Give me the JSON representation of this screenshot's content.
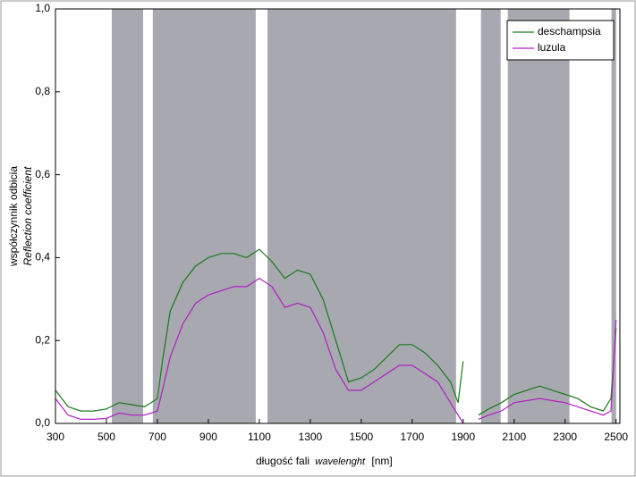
{
  "chart_data": {
    "type": "line",
    "ylabel": "współczynnik odbicia",
    "ylabel_sub": "Reflection coefficient",
    "xlabel": "długość fali",
    "xlabel_italic": "wavelenght",
    "xlabel_unit": "[nm]",
    "xlim": [
      300,
      2515
    ],
    "ylim": [
      0,
      1
    ],
    "xticks": [
      300,
      500,
      700,
      900,
      1100,
      1300,
      1500,
      1700,
      1900,
      2100,
      2300,
      2500
    ],
    "yticks": [
      {
        "value": 0,
        "label": "0,0"
      },
      {
        "value": 0.2,
        "label": "0,2"
      },
      {
        "value": 0.4,
        "label": "0,4"
      },
      {
        "value": 0.6,
        "label": "0,6"
      },
      {
        "value": 0.8,
        "label": "0,8"
      },
      {
        "value": 1,
        "label": "1,0"
      }
    ],
    "shaded_spans": [
      [
        521,
        644
      ],
      [
        682,
        1086
      ],
      [
        1132,
        1872
      ],
      [
        1970,
        2047
      ],
      [
        2075,
        2317
      ],
      [
        2482,
        2500
      ]
    ],
    "shade_color": "#a7a8b0",
    "legend": "upper right",
    "x": [
      300,
      350,
      400,
      450,
      500,
      550,
      600,
      650,
      700,
      720,
      750,
      800,
      850,
      900,
      950,
      1000,
      1050,
      1100,
      1150,
      1200,
      1250,
      1300,
      1350,
      1400,
      1450,
      1500,
      1550,
      1600,
      1650,
      1700,
      1750,
      1800,
      1850,
      1880,
      1900,
      1950,
      1960,
      2000,
      2050,
      2100,
      2150,
      2200,
      2250,
      2300,
      2350,
      2400,
      2450,
      2480,
      2500
    ],
    "series": [
      {
        "name": "deschampsia",
        "color": "#1a7a1a",
        "values": [
          0.08,
          0.04,
          0.03,
          0.03,
          0.035,
          0.05,
          0.045,
          0.04,
          0.06,
          0.15,
          0.27,
          0.34,
          0.38,
          0.4,
          0.41,
          0.41,
          0.4,
          0.42,
          0.39,
          0.35,
          0.37,
          0.36,
          0.3,
          0.2,
          0.1,
          0.11,
          0.13,
          0.16,
          0.19,
          0.19,
          0.17,
          0.14,
          0.1,
          0.05,
          0.15,
          null,
          0.02,
          0.035,
          0.05,
          0.07,
          0.08,
          0.09,
          0.08,
          0.07,
          0.06,
          0.04,
          0.03,
          0.06,
          0.23
        ]
      },
      {
        "name": "luzula",
        "color": "#b020c0",
        "values": [
          0.06,
          0.02,
          0.01,
          0.01,
          0.012,
          0.025,
          0.02,
          0.02,
          0.03,
          0.08,
          0.16,
          0.24,
          0.29,
          0.31,
          0.32,
          0.33,
          0.33,
          0.35,
          0.33,
          0.28,
          0.29,
          0.28,
          0.22,
          0.13,
          0.08,
          0.08,
          0.1,
          0.12,
          0.14,
          0.14,
          0.12,
          0.1,
          0.05,
          0.02,
          0,
          null,
          0.01,
          0.02,
          0.03,
          0.05,
          0.055,
          0.06,
          0.055,
          0.05,
          0.04,
          0.03,
          0.02,
          0.03,
          0.25
        ]
      }
    ]
  }
}
